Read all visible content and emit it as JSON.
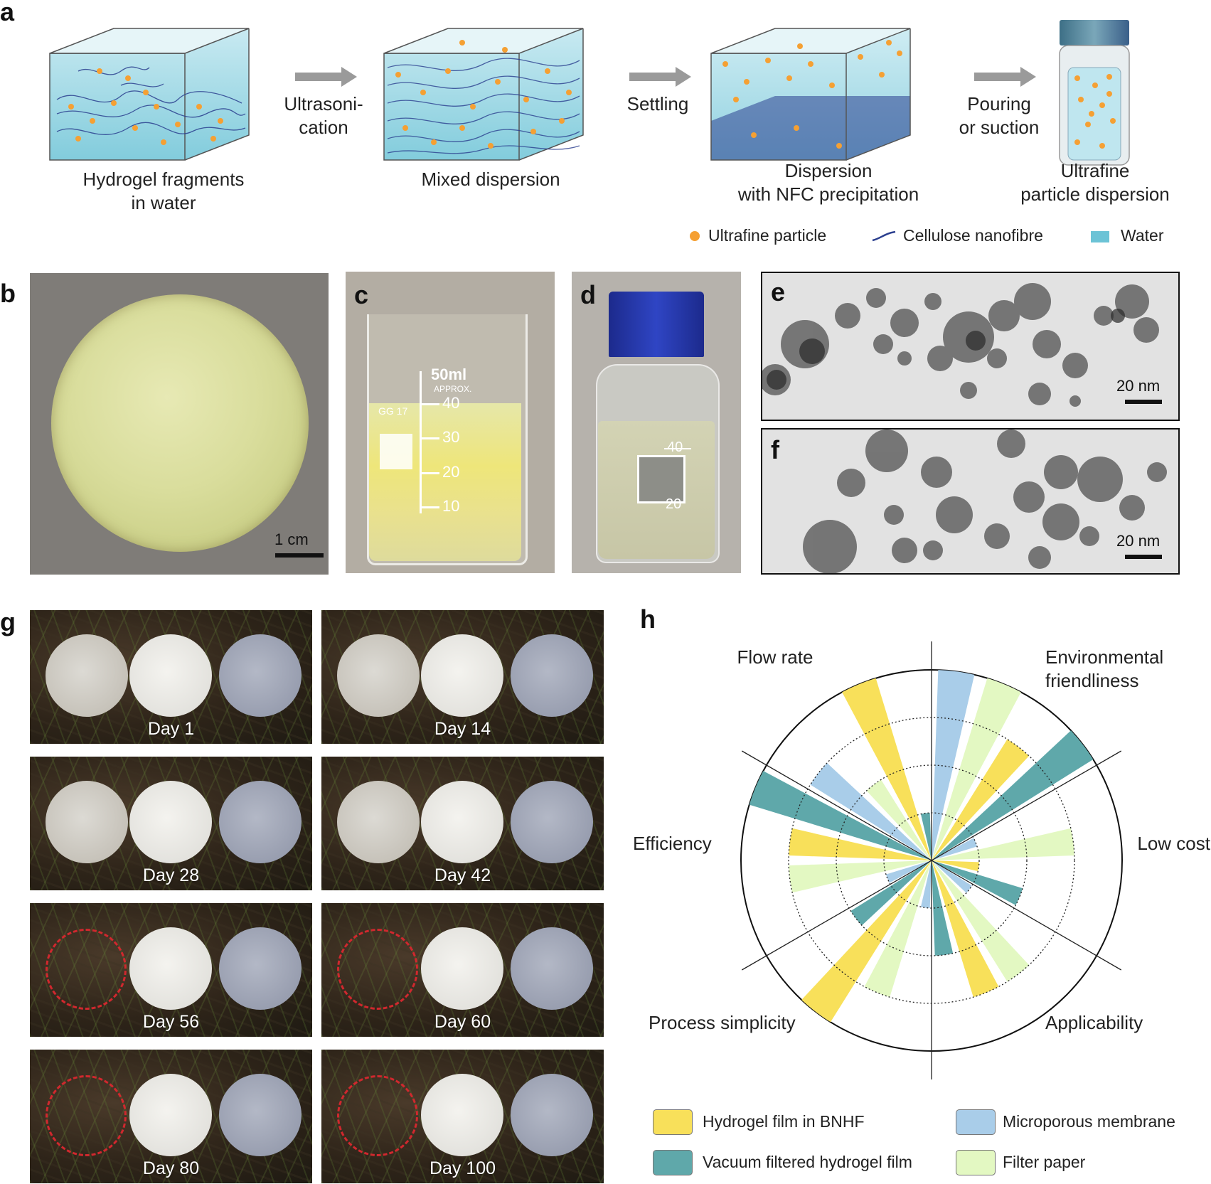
{
  "panels": {
    "a": {
      "letter": "a",
      "steps": [
        {
          "caption": "Hydrogel fragments\nin water"
        },
        {
          "caption": "Mixed dispersion"
        },
        {
          "caption": "Dispersion\nwith NFC precipitation"
        },
        {
          "caption": "Ultrafine\nparticle dispersion"
        }
      ],
      "arrows": [
        {
          "label": "Ultrasoni-\ncation"
        },
        {
          "label": "Settling"
        },
        {
          "label": "Pouring\nor suction"
        }
      ],
      "legend": [
        {
          "label": "Ultrafine particle",
          "icon": "orange-dot",
          "color": "#f5a033"
        },
        {
          "label": "Cellulose nanofibre",
          "icon": "blue-fibre",
          "color": "#2b3f8f"
        },
        {
          "label": "Water",
          "icon": "water-swatch",
          "color": "#6cc3d6"
        }
      ]
    },
    "b": {
      "letter": "b",
      "scalebar": "1 cm"
    },
    "c": {
      "letter": "c",
      "markings": {
        "volume": "50ml",
        "approx": "APPROX.",
        "brand": "GG 17",
        "ticks": [
          "40",
          "30",
          "20",
          "10"
        ]
      }
    },
    "d": {
      "letter": "d",
      "ticks": [
        "40",
        "20"
      ]
    },
    "e": {
      "letter": "e",
      "scalebar": "20 nm"
    },
    "f": {
      "letter": "f",
      "scalebar": "20 nm"
    },
    "g": {
      "letter": "g",
      "days": [
        {
          "label": "Day 1",
          "degraded": false
        },
        {
          "label": "Day 14",
          "degraded": false
        },
        {
          "label": "Day 28",
          "degraded": false
        },
        {
          "label": "Day 42",
          "degraded": false
        },
        {
          "label": "Day 56",
          "degraded": true
        },
        {
          "label": "Day 60",
          "degraded": true
        },
        {
          "label": "Day 80",
          "degraded": true
        },
        {
          "label": "Day 100",
          "degraded": true
        }
      ]
    },
    "h": {
      "letter": "h",
      "axes": [
        "Flow rate",
        "Environmental\nfriendliness",
        "Low cost",
        "Applicability",
        "Process simplicity",
        "Efficiency"
      ],
      "legend": [
        {
          "label": "Hydrogel film in BNHF",
          "color": "#f8e05a"
        },
        {
          "label": "Microporous membrane",
          "color": "#a9cde9"
        },
        {
          "label": "Vacuum filtered hydrogel film",
          "color": "#5fa8aa"
        },
        {
          "label": "Filter paper",
          "color": "#e3f8c2"
        }
      ]
    }
  },
  "chart_data": {
    "type": "polar-bar",
    "categories": [
      "Flow rate",
      "Environmental friendliness",
      "Low cost",
      "Applicability",
      "Process simplicity",
      "Efficiency"
    ],
    "rmax": 4,
    "series": [
      {
        "name": "Hydrogel film in BNHF",
        "color": "#f8e05a",
        "values": [
          4,
          3,
          1,
          3,
          4,
          3
        ]
      },
      {
        "name": "Vacuum filtered hydrogel film",
        "color": "#5fa8aa",
        "values": [
          1,
          4,
          2,
          2,
          2,
          4
        ]
      },
      {
        "name": "Microporous membrane",
        "color": "#a9cde9",
        "values": [
          4,
          1,
          1,
          1,
          1,
          3
        ]
      },
      {
        "name": "Filter paper",
        "color": "#e3f8c2",
        "values": [
          4,
          3,
          3,
          3,
          3,
          2
        ]
      }
    ],
    "grid": true
  }
}
